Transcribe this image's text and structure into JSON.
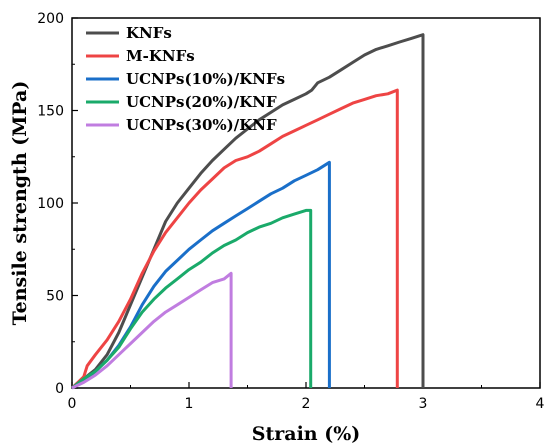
{
  "chart_data": {
    "type": "line",
    "title": "",
    "xlabel": "Strain (%)",
    "ylabel": "Tensile strength (MPa)",
    "xlim": [
      0,
      4
    ],
    "ylim": [
      0,
      200
    ],
    "xticks": [
      "0",
      "1",
      "2",
      "3",
      "4"
    ],
    "yticks": [
      "0",
      "50",
      "100",
      "150",
      "200"
    ],
    "grid": false,
    "legend_position": "top-left",
    "series": [
      {
        "name": "KNFs",
        "color": "#4d4d4d",
        "points": [
          [
            0,
            0
          ],
          [
            0.1,
            5
          ],
          [
            0.2,
            10
          ],
          [
            0.3,
            18
          ],
          [
            0.4,
            30
          ],
          [
            0.5,
            45
          ],
          [
            0.6,
            60
          ],
          [
            0.7,
            75
          ],
          [
            0.8,
            90
          ],
          [
            0.9,
            100
          ],
          [
            1.0,
            108
          ],
          [
            1.1,
            116
          ],
          [
            1.2,
            123
          ],
          [
            1.3,
            129
          ],
          [
            1.4,
            135
          ],
          [
            1.5,
            140
          ],
          [
            1.6,
            145
          ],
          [
            1.7,
            149
          ],
          [
            1.8,
            153
          ],
          [
            1.9,
            156
          ],
          [
            2.0,
            159
          ],
          [
            2.05,
            161
          ],
          [
            2.1,
            165
          ],
          [
            2.2,
            168
          ],
          [
            2.3,
            172
          ],
          [
            2.4,
            176
          ],
          [
            2.5,
            180
          ],
          [
            2.6,
            183
          ],
          [
            2.7,
            185
          ],
          [
            2.8,
            187
          ],
          [
            2.9,
            189
          ],
          [
            3.0,
            191
          ],
          [
            3.0,
            0
          ]
        ]
      },
      {
        "name": "M-KNFs",
        "color": "#ee4444",
        "points": [
          [
            0,
            0
          ],
          [
            0.1,
            6
          ],
          [
            0.13,
            12
          ],
          [
            0.2,
            18
          ],
          [
            0.3,
            26
          ],
          [
            0.4,
            36
          ],
          [
            0.5,
            48
          ],
          [
            0.6,
            62
          ],
          [
            0.7,
            74
          ],
          [
            0.8,
            84
          ],
          [
            0.9,
            92
          ],
          [
            1.0,
            100
          ],
          [
            1.1,
            107
          ],
          [
            1.2,
            113
          ],
          [
            1.3,
            119
          ],
          [
            1.4,
            123
          ],
          [
            1.5,
            125
          ],
          [
            1.6,
            128
          ],
          [
            1.7,
            132
          ],
          [
            1.8,
            136
          ],
          [
            1.9,
            139
          ],
          [
            2.0,
            142
          ],
          [
            2.1,
            145
          ],
          [
            2.2,
            148
          ],
          [
            2.3,
            151
          ],
          [
            2.4,
            154
          ],
          [
            2.5,
            156
          ],
          [
            2.6,
            158
          ],
          [
            2.7,
            159
          ],
          [
            2.78,
            161
          ],
          [
            2.78,
            0
          ]
        ]
      },
      {
        "name": "UCNPs(10%)/KNFs",
        "color": "#1a6fc9",
        "points": [
          [
            0,
            0
          ],
          [
            0.1,
            4
          ],
          [
            0.2,
            9
          ],
          [
            0.3,
            15
          ],
          [
            0.4,
            23
          ],
          [
            0.5,
            33
          ],
          [
            0.6,
            45
          ],
          [
            0.7,
            55
          ],
          [
            0.8,
            63
          ],
          [
            0.9,
            69
          ],
          [
            1.0,
            75
          ],
          [
            1.1,
            80
          ],
          [
            1.2,
            85
          ],
          [
            1.3,
            89
          ],
          [
            1.4,
            93
          ],
          [
            1.5,
            97
          ],
          [
            1.6,
            101
          ],
          [
            1.7,
            105
          ],
          [
            1.8,
            108
          ],
          [
            1.9,
            112
          ],
          [
            2.0,
            115
          ],
          [
            2.1,
            118
          ],
          [
            2.2,
            122
          ],
          [
            2.2,
            0
          ]
        ]
      },
      {
        "name": "UCNPs(20%)/KNF",
        "color": "#1aaa6a",
        "points": [
          [
            0,
            0
          ],
          [
            0.1,
            5
          ],
          [
            0.2,
            9
          ],
          [
            0.3,
            15
          ],
          [
            0.4,
            22
          ],
          [
            0.5,
            32
          ],
          [
            0.6,
            41
          ],
          [
            0.7,
            48
          ],
          [
            0.8,
            54
          ],
          [
            0.9,
            59
          ],
          [
            1.0,
            64
          ],
          [
            1.1,
            68
          ],
          [
            1.2,
            73
          ],
          [
            1.3,
            77
          ],
          [
            1.4,
            80
          ],
          [
            1.5,
            84
          ],
          [
            1.6,
            87
          ],
          [
            1.7,
            89
          ],
          [
            1.8,
            92
          ],
          [
            1.9,
            94
          ],
          [
            2.0,
            96
          ],
          [
            2.04,
            96
          ],
          [
            2.04,
            0
          ]
        ]
      },
      {
        "name": "UCNPs(30%)/KNF",
        "color": "#c07de0",
        "points": [
          [
            0,
            0
          ],
          [
            0.1,
            3
          ],
          [
            0.2,
            7
          ],
          [
            0.3,
            12
          ],
          [
            0.4,
            18
          ],
          [
            0.5,
            24
          ],
          [
            0.6,
            30
          ],
          [
            0.7,
            36
          ],
          [
            0.8,
            41
          ],
          [
            0.9,
            45
          ],
          [
            1.0,
            49
          ],
          [
            1.1,
            53
          ],
          [
            1.2,
            57
          ],
          [
            1.3,
            59
          ],
          [
            1.36,
            62
          ],
          [
            1.36,
            0
          ]
        ]
      }
    ]
  }
}
